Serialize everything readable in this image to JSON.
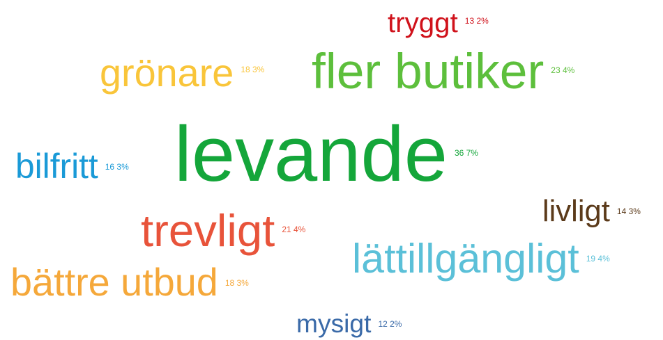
{
  "chart_data": {
    "type": "wordcloud",
    "categories": [
      "tryggt",
      "grönare",
      "fler butiker",
      "levande",
      "bilfritt",
      "livligt",
      "trevligt",
      "lättillgängligt",
      "bättre utbud",
      "mysigt"
    ],
    "values": [
      13.2,
      18.3,
      23.4,
      36.7,
      16.3,
      14.3,
      21.4,
      19.4,
      18.3,
      12.2
    ],
    "value_labels": [
      "13 2%",
      "18 3%",
      "23 4%",
      "36 7%",
      "16 3%",
      "14 3%",
      "21 4%",
      "19 4%",
      "18 3%",
      "12 2%"
    ],
    "colors": [
      "#d0121b",
      "#f9c53a",
      "#5dbf3c",
      "#14a63a",
      "#1a9ad7",
      "#5b3a1a",
      "#e8533a",
      "#5bc0d8",
      "#f5a83a",
      "#3a6aa8"
    ]
  }
}
